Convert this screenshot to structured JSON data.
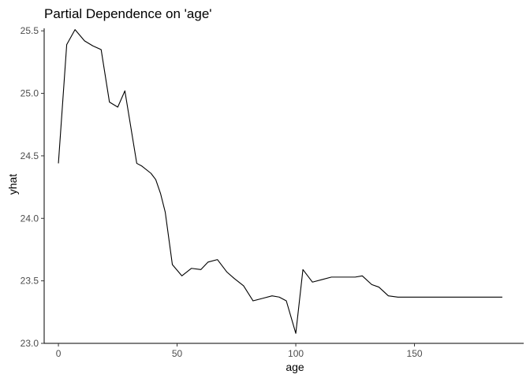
{
  "chart_data": {
    "type": "line",
    "title": "Partial Dependence on 'age'",
    "xlabel": "age",
    "ylabel": "yhat",
    "xlim": [
      -6,
      196
    ],
    "ylim": [
      23.0,
      25.52
    ],
    "xticks": [
      0,
      50,
      100,
      150
    ],
    "yticks": [
      23.0,
      23.5,
      24.0,
      24.5,
      25.0,
      25.5
    ],
    "ytick_labels": [
      "23.0",
      "23.5",
      "24.0",
      "24.5",
      "25.0",
      "25.5"
    ],
    "grid": false,
    "series": [
      {
        "color": "#000000",
        "x": [
          0,
          3.5,
          7,
          11,
          14.5,
          18,
          21.5,
          25,
          28,
          33,
          35,
          39,
          41,
          43,
          45,
          48,
          52,
          56,
          60,
          63,
          67,
          71,
          74,
          78,
          82,
          86,
          90,
          93,
          96,
          100,
          103,
          107,
          111,
          115,
          118,
          122,
          125,
          128,
          132,
          135,
          139,
          143,
          150,
          160,
          170,
          180,
          187
        ],
        "values": [
          24.44,
          25.39,
          25.51,
          25.42,
          25.38,
          25.35,
          24.93,
          24.89,
          25.02,
          24.44,
          24.42,
          24.36,
          24.31,
          24.2,
          24.05,
          23.63,
          23.54,
          23.6,
          23.59,
          23.65,
          23.67,
          23.57,
          23.52,
          23.46,
          23.34,
          23.36,
          23.38,
          23.37,
          23.34,
          23.08,
          23.59,
          23.49,
          23.51,
          23.53,
          23.53,
          23.53,
          23.53,
          23.54,
          23.47,
          23.45,
          23.38,
          23.37,
          23.37,
          23.37,
          23.37,
          23.37,
          23.37
        ]
      }
    ]
  }
}
